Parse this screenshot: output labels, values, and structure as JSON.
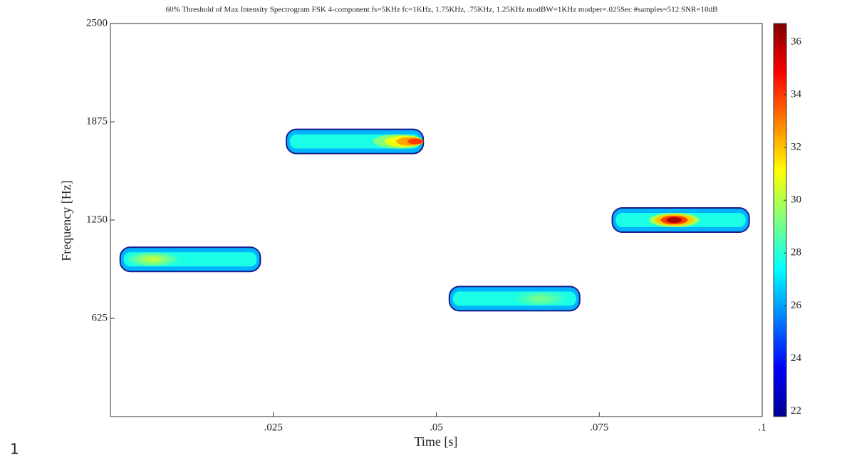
{
  "chart_data": {
    "type": "spectrogram",
    "title": "60% Threshold of Max Intensity Spectrogram FSK 4-component fs=5KHz fc=1KHz, 1.75KHz, .75KHz, 1.25KHz modBW=1KHz modper=.025Sec #samples=512 SNR=10dB",
    "x_label": "Time [s]",
    "y_label": "Frequency [Hz]",
    "xlim": [
      0,
      0.1
    ],
    "xticks": [
      {
        "value": 0.025,
        "label": ".025"
      },
      {
        "value": 0.05,
        "label": ".05"
      },
      {
        "value": 0.075,
        "label": ".075"
      },
      {
        "value": 0.1,
        "label": ".1"
      }
    ],
    "ylim": [
      0,
      2500
    ],
    "yticks": [
      625,
      1250,
      1875,
      2500
    ],
    "zlim": [
      21.8,
      36.7
    ],
    "zticks": [
      22,
      24,
      26,
      28,
      30,
      32,
      34,
      36
    ],
    "components": [
      {
        "t_start": 0.0015,
        "t_end": 0.023,
        "frequency": 1000,
        "peak_time": 0.0065,
        "peak_intensity": 30
      },
      {
        "t_start": 0.027,
        "t_end": 0.048,
        "frequency": 1750,
        "peak_time": 0.047,
        "peak_intensity": 34
      },
      {
        "t_start": 0.052,
        "t_end": 0.072,
        "frequency": 750,
        "peak_time": 0.066,
        "peak_intensity": 29
      },
      {
        "t_start": 0.077,
        "t_end": 0.098,
        "frequency": 1250,
        "peak_time": 0.0865,
        "peak_intensity": 36
      }
    ]
  },
  "page_number": "1"
}
